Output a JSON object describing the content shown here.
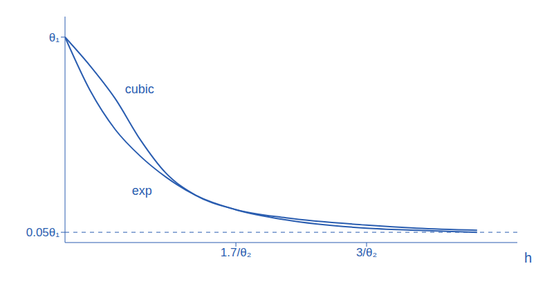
{
  "chart_data": {
    "type": "line",
    "x": [
      0,
      0.25,
      0.5,
      0.75,
      1,
      1.3,
      1.7,
      2.2,
      3,
      3.5,
      4.1
    ],
    "series": [
      {
        "name": "exp",
        "color": "#2a5db0",
        "values": [
          1,
          0.74,
          0.55,
          0.42,
          0.32,
          0.23,
          0.16,
          0.12,
          0.085,
          0.07,
          0.06
        ]
      },
      {
        "name": "cubic",
        "color": "#2a5db0",
        "values": [
          1,
          0.86,
          0.7,
          0.5,
          0.34,
          0.23,
          0.16,
          0.11,
          0.07,
          0.06,
          0.05
        ]
      }
    ],
    "x_label": "h",
    "xlim": [
      0,
      4.5
    ],
    "xticks": [
      {
        "value": 1.7,
        "label": "1.7/θ₂"
      },
      {
        "value": 3,
        "label": "3/θ₂"
      }
    ],
    "ylim": [
      0,
      1.1
    ],
    "yticks": [
      {
        "value": 0.05,
        "label": "0.05θ₁"
      },
      {
        "value": 1,
        "label": "θ₁"
      }
    ],
    "grid": false
  }
}
